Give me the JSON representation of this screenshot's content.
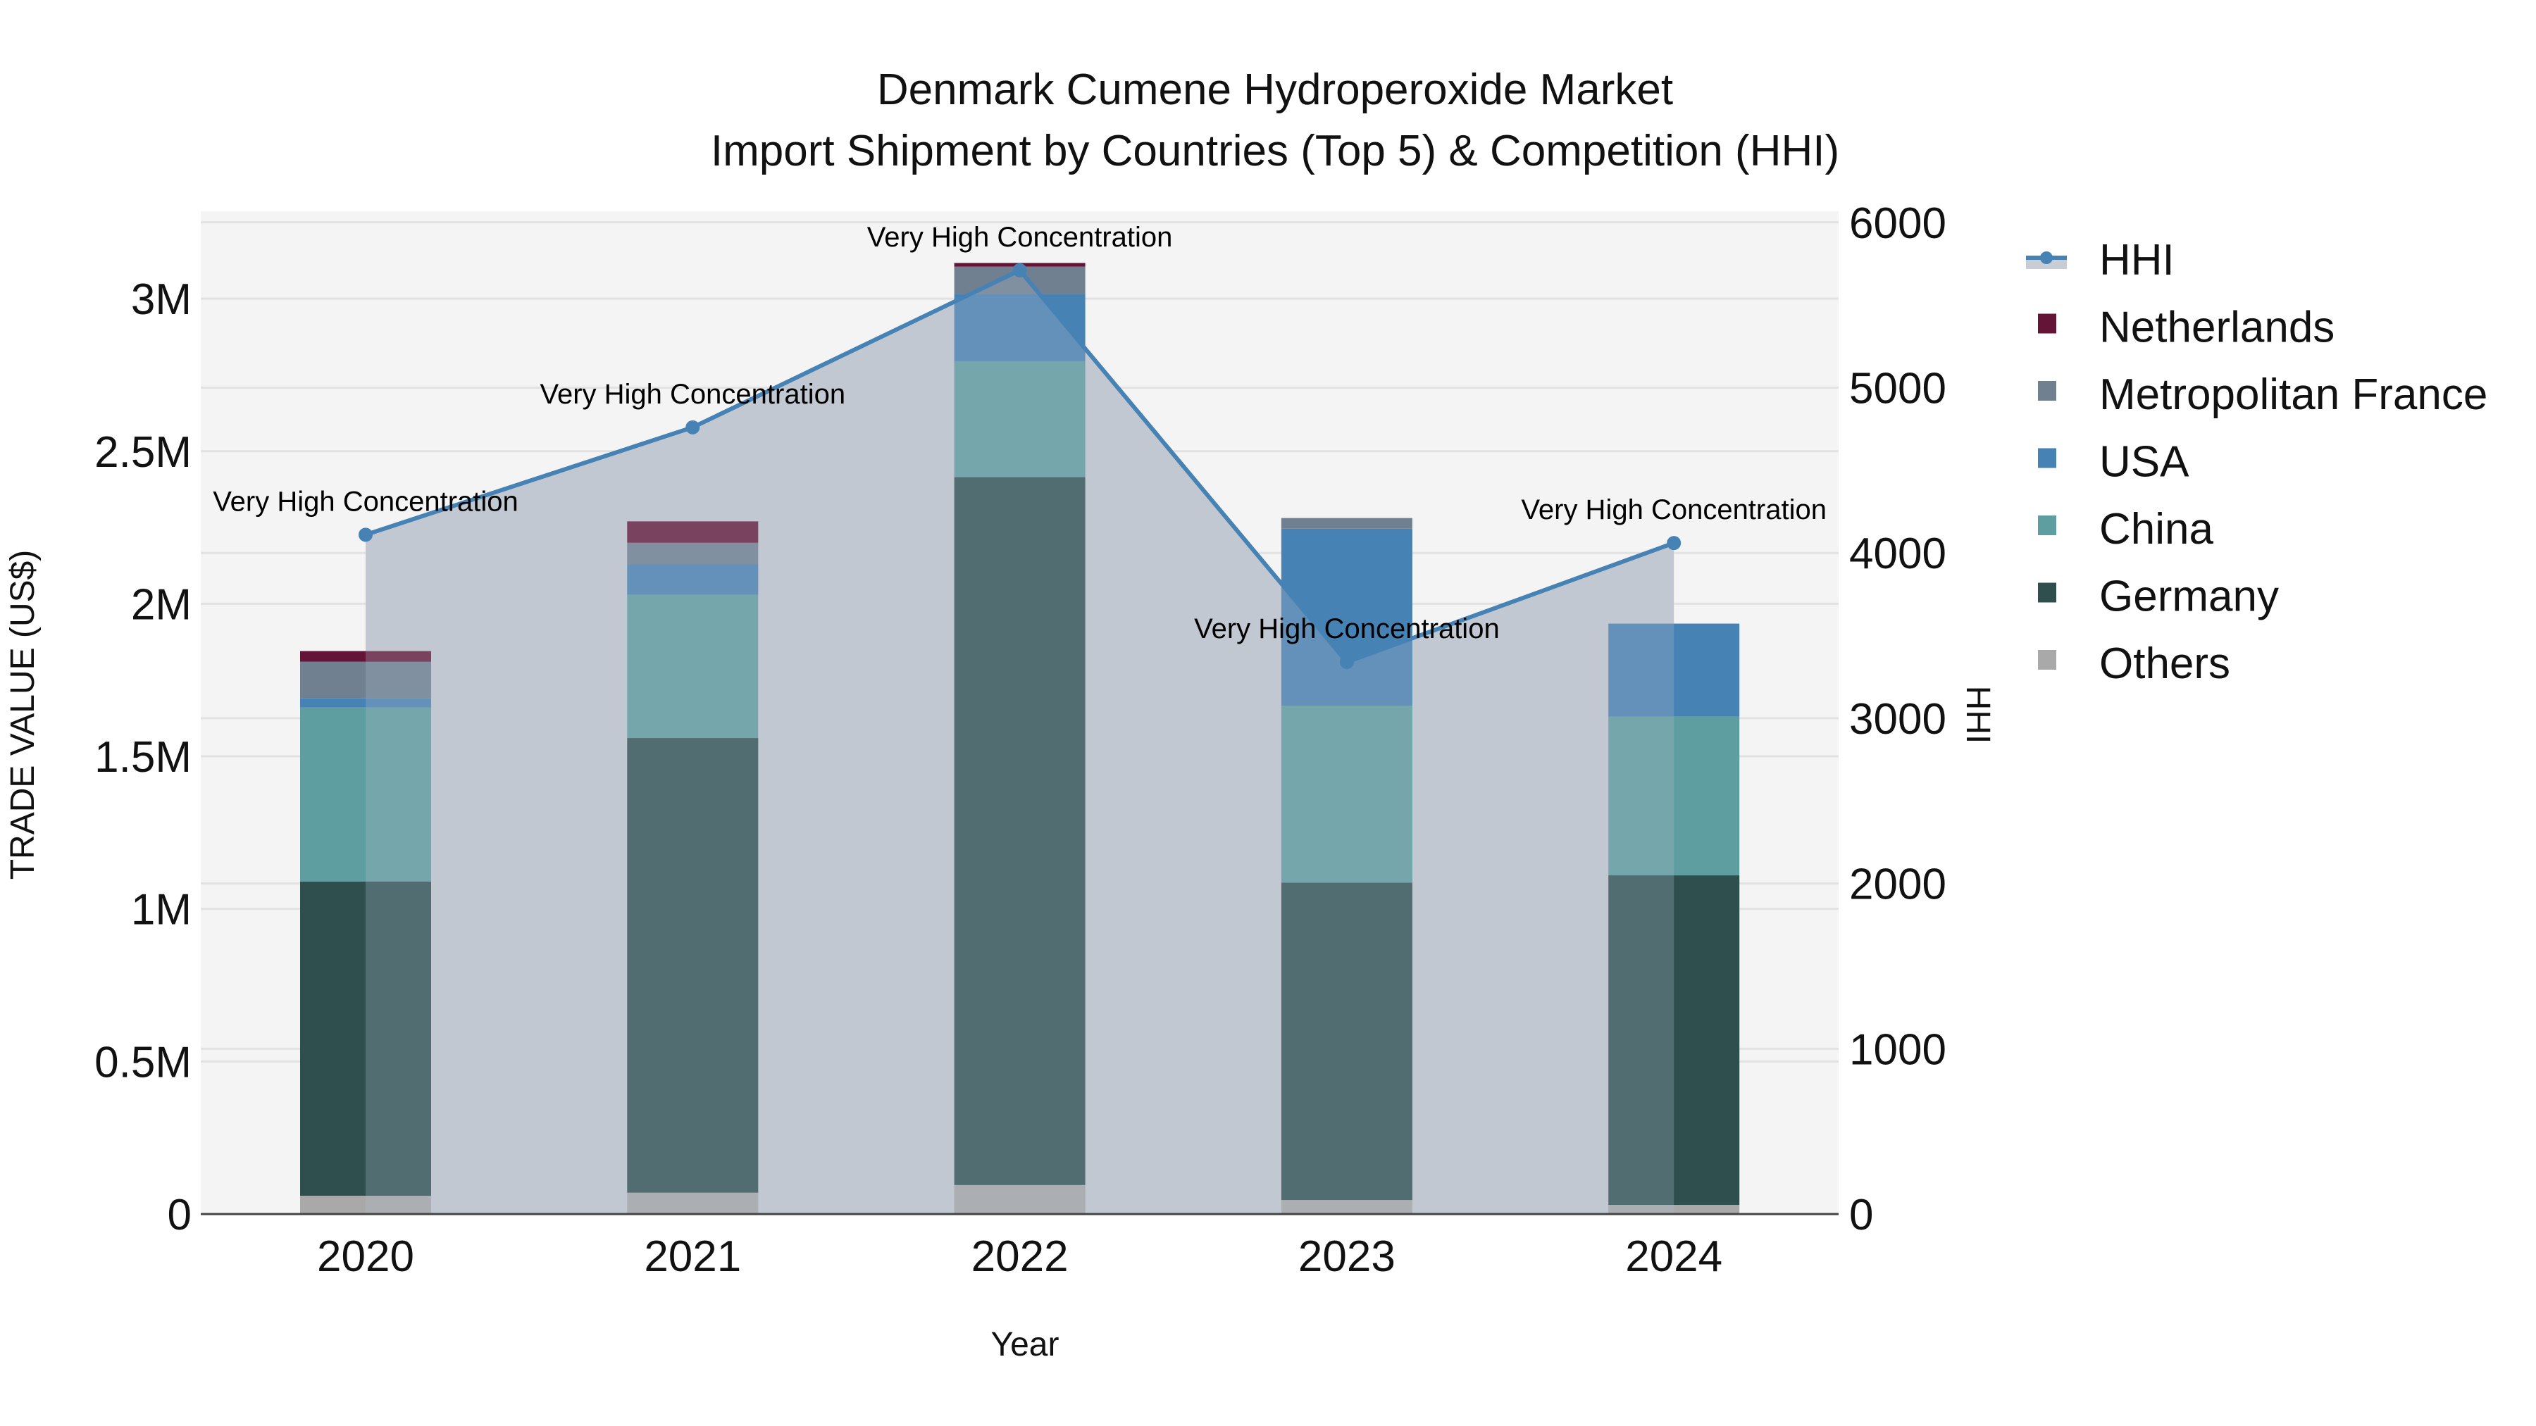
{
  "title": {
    "line1": "Denmark Cumene Hydroperoxide Market",
    "line2": "Import Shipment by Countries (Top 5) & Competition (HHI)"
  },
  "axes": {
    "x_title": "Year",
    "y_left_title": "TRADE VALUE (US$)",
    "y_right_title": "HHI",
    "y_left_ticks": [
      "0",
      "0.5M",
      "1M",
      "1.5M",
      "2M",
      "2.5M",
      "3M"
    ],
    "y_right_ticks": [
      "0",
      "1000",
      "2000",
      "3000",
      "4000",
      "5000",
      "6000"
    ]
  },
  "legend": [
    {
      "name": "HHI",
      "type": "line",
      "color": "#4682B4"
    },
    {
      "name": "Netherlands",
      "type": "bar",
      "color": "#641537"
    },
    {
      "name": "Metropolitan France",
      "type": "bar",
      "color": "#708090"
    },
    {
      "name": "USA",
      "type": "bar",
      "color": "#4682B4"
    },
    {
      "name": "China",
      "type": "bar",
      "color": "#5F9EA0"
    },
    {
      "name": "Germany",
      "type": "bar",
      "color": "#2F4F4F"
    },
    {
      "name": "Others",
      "type": "bar",
      "color": "#A9A9A9"
    }
  ],
  "colors": {
    "plot_bg": "#F4F4F4",
    "grid": "#E2E2E2",
    "hhi_line": "#4682B4",
    "hhi_fill": "rgba(176,186,202,0.6)",
    "axis_line": "#444444"
  },
  "chart_data": {
    "type": "bar",
    "stacked": true,
    "title": "Denmark Cumene Hydroperoxide Market — Import Shipment by Countries (Top 5) & Competition (HHI)",
    "xlabel": "Year",
    "ylabel": "TRADE VALUE (US$)",
    "y2label": "HHI",
    "ylim": [
      0,
      3280000
    ],
    "y2lim": [
      0,
      6060
    ],
    "grid": true,
    "legend_position": "right",
    "categories": [
      "2020",
      "2021",
      "2022",
      "2023",
      "2024"
    ],
    "series": [
      {
        "name": "Others",
        "color": "#A9A9A9",
        "values": [
          60000,
          70000,
          95000,
          46000,
          30000
        ]
      },
      {
        "name": "Germany",
        "color": "#2F4F4F",
        "values": [
          1030000,
          1490000,
          2320000,
          1040000,
          1080000
        ]
      },
      {
        "name": "China",
        "color": "#5F9EA0",
        "values": [
          570000,
          470000,
          380000,
          580000,
          520000
        ]
      },
      {
        "name": "USA",
        "color": "#4682B4",
        "values": [
          30000,
          100000,
          220000,
          580000,
          305000
        ]
      },
      {
        "name": "Metropolitan France",
        "color": "#708090",
        "values": [
          120000,
          70000,
          90000,
          35000,
          0
        ]
      },
      {
        "name": "Netherlands",
        "color": "#641537",
        "values": [
          35000,
          70000,
          12000,
          0,
          0
        ]
      }
    ],
    "line_series": {
      "name": "HHI",
      "axis": "right",
      "type": "line+area",
      "color": "#4682B4",
      "values": [
        4110,
        4760,
        5710,
        3340,
        4060
      ]
    },
    "annotations": [
      {
        "x": "2020",
        "text": "Very High Concentration"
      },
      {
        "x": "2021",
        "text": "Very High Concentration"
      },
      {
        "x": "2022",
        "text": "Very High Concentration"
      },
      {
        "x": "2023",
        "text": "Very High Concentration"
      },
      {
        "x": "2024",
        "text": "Very High Concentration"
      }
    ]
  }
}
